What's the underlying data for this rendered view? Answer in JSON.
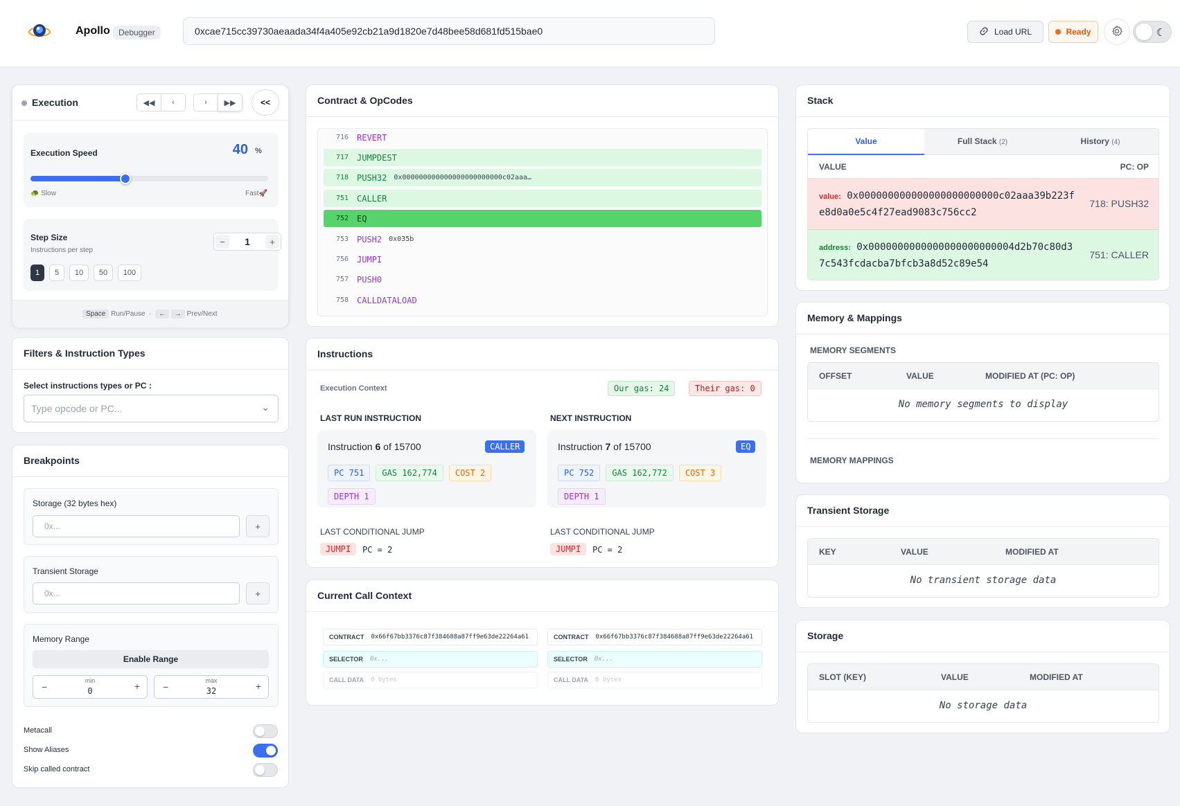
{
  "header": {
    "brand": "Apollo",
    "badge": "Debugger",
    "tx_hash": "0xcae715cc39730aeaada34f4a405e92cb21a9d1820e7d48bee58d681fd515bae0",
    "load_url": "Load URL",
    "status": "Ready",
    "colors": {
      "accent": "#3b6ff2",
      "status": "#ea580c"
    }
  },
  "execution": {
    "title": "Execution",
    "speed_label": "Execution Speed",
    "speed_value": "40",
    "speed_unit": "%",
    "speed_fraction": 0.4,
    "slow": "Slow",
    "fast": "Fast",
    "step_label": "Step Size",
    "step_sub": "Instructions per step",
    "step_value": "1",
    "step_options": [
      "1",
      "5",
      "10",
      "50",
      "100"
    ],
    "shortcut_space": "Space",
    "shortcut_space_label": "Run/Pause",
    "shortcut_arrows_label": "Prev/Next",
    "collapse": "<<"
  },
  "filters": {
    "title": "Filters & Instruction Types",
    "label": "Select instructions types or PC :",
    "placeholder": "Type opcode or PC..."
  },
  "breakpoints": {
    "title": "Breakpoints",
    "storage_label": "Storage (32 bytes hex)",
    "storage_placeholder": "0x...",
    "transient_label": "Transient Storage",
    "transient_placeholder": "0x...",
    "memory_label": "Memory Range",
    "enable_range": "Enable Range",
    "min_label": "min",
    "min_value": "0",
    "max_label": "max",
    "max_value": "32",
    "metacall": "Metacall",
    "show_aliases": "Show Aliases",
    "skip_called": "Skip called contract"
  },
  "opcodes": {
    "title": "Contract & OpCodes",
    "rows": [
      {
        "pc": "716",
        "op": "REVERT",
        "arg": ""
      },
      {
        "pc": "717",
        "op": "JUMPDEST",
        "arg": ""
      },
      {
        "pc": "718",
        "op": "PUSH32",
        "arg": "0x000000000000000000000000c02aaa…"
      },
      {
        "pc": "751",
        "op": "CALLER",
        "arg": ""
      },
      {
        "pc": "752",
        "op": "EQ",
        "arg": ""
      },
      {
        "pc": "753",
        "op": "PUSH2",
        "arg": "0x035b"
      },
      {
        "pc": "756",
        "op": "JUMPI",
        "arg": ""
      },
      {
        "pc": "757",
        "op": "PUSH0",
        "arg": ""
      },
      {
        "pc": "758",
        "op": "CALLDATALOAD",
        "arg": ""
      }
    ]
  },
  "instructions": {
    "title": "Instructions",
    "context_label": "Execution Context",
    "our_gas": "Our gas: 24",
    "their_gas": "Their gas: 0",
    "last": {
      "heading": "LAST RUN INSTRUCTION",
      "prefix": "Instruction",
      "num": "6",
      "of": "of 15700",
      "op": "CALLER",
      "pc": "PC 751",
      "gas": "GAS 162,774",
      "cost": "COST 2",
      "depth": "DEPTH 1",
      "jump_label": "LAST CONDITIONAL JUMP",
      "jump_op": "JUMPI",
      "jump_pc": "PC = 2"
    },
    "next": {
      "heading": "NEXT INSTRUCTION",
      "prefix": "Instruction",
      "num": "7",
      "of": "of 15700",
      "op": "EQ",
      "pc": "PC 752",
      "gas": "GAS 162,772",
      "cost": "COST 3",
      "depth": "DEPTH 1",
      "jump_label": "LAST CONDITIONAL JUMP",
      "jump_op": "JUMPI",
      "jump_pc": "PC = 2"
    }
  },
  "call_context": {
    "title": "Current Call Context",
    "contract_label": "CONTRACT",
    "contract": "0x66f67bb3376c87f384688a87ff9e63de22264a61",
    "selector_label": "SELECTOR",
    "selector": "0x...",
    "calldata_label": "CALL DATA",
    "calldata": "0 bytes"
  },
  "stack": {
    "title": "Stack",
    "tabs": [
      {
        "label": "Value",
        "count": ""
      },
      {
        "label": "Full Stack",
        "count": "(2)"
      },
      {
        "label": "History",
        "count": "(4)"
      }
    ],
    "col_value": "VALUE",
    "col_pc": "PC: OP",
    "items": [
      {
        "key": "value:",
        "line1": "0x000000000000000000000000c02aaa39b223f",
        "line2": "e8d0a0e5c4f27ead9083c756cc2",
        "pc": "718: PUSH32"
      },
      {
        "key": "address:",
        "line1": "0x0000000000000000000000004d2b70c80d3",
        "line2": "7c543fcdacba7bfcb3a8d52c89e54",
        "pc": "751: CALLER"
      }
    ]
  },
  "memory": {
    "title": "Memory & Mappings",
    "segments_label": "MEMORY SEGMENTS",
    "cols": [
      "OFFSET",
      "VALUE",
      "MODIFIED AT (PC: OP)"
    ],
    "empty": "No memory segments to display",
    "mappings_label": "MEMORY MAPPINGS"
  },
  "transient": {
    "title": "Transient Storage",
    "cols": [
      "KEY",
      "VALUE",
      "MODIFIED AT"
    ],
    "empty": "No transient storage data"
  },
  "storage": {
    "title": "Storage",
    "cols": [
      "SLOT (KEY)",
      "VALUE",
      "MODIFIED AT"
    ],
    "empty": "No storage data"
  }
}
